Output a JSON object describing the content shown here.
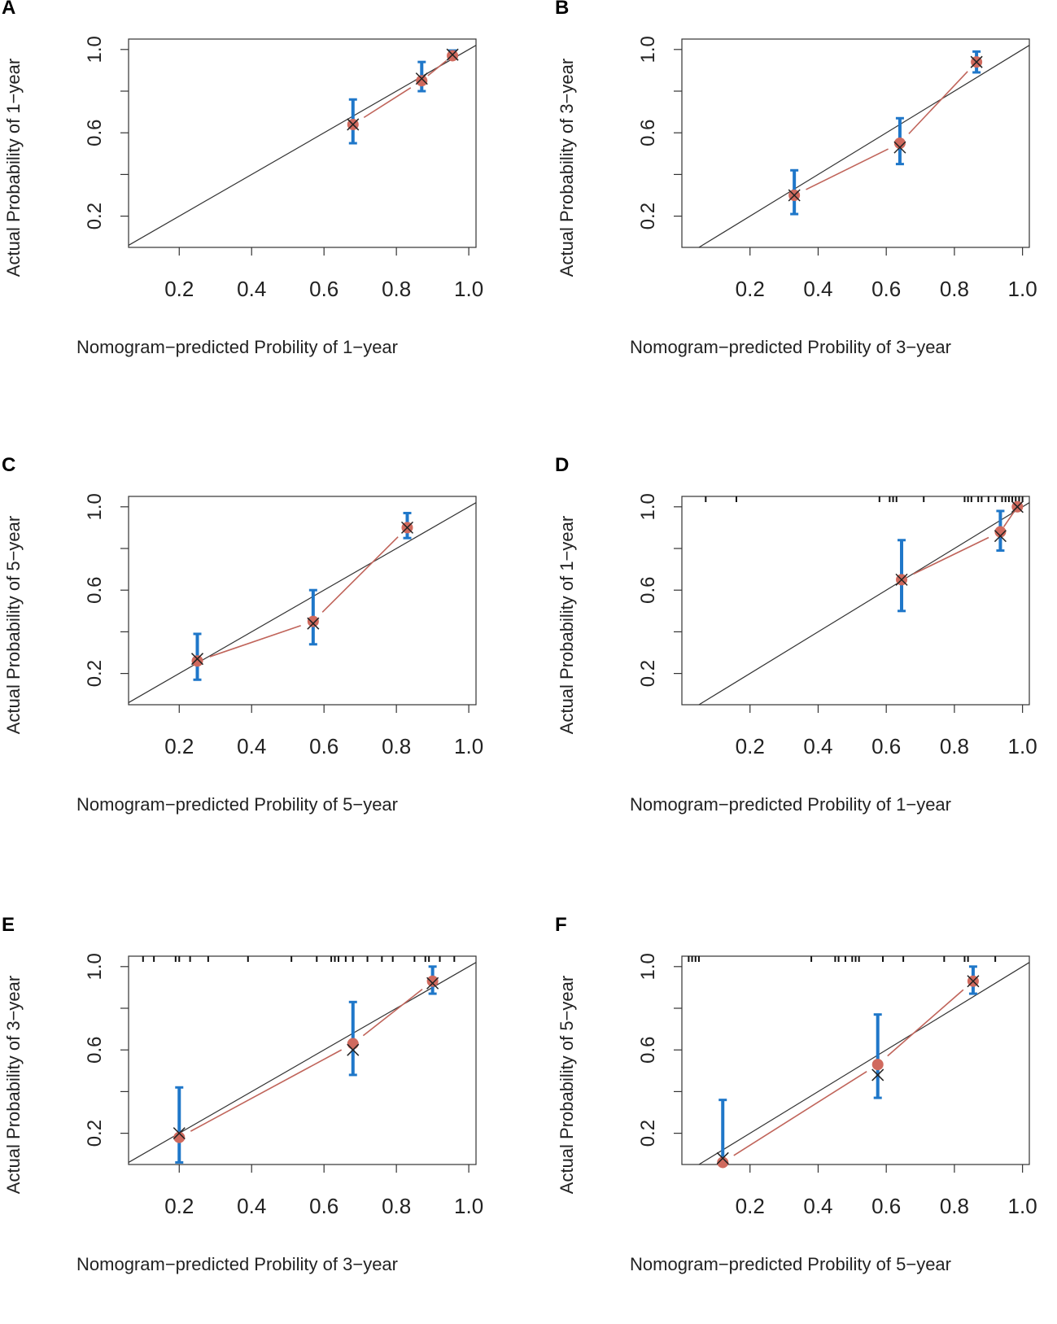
{
  "chart_data": [
    {
      "panel": "A",
      "type": "scatter",
      "xlabel": "Nomogram−predicted Probility of 1−year",
      "ylabel": "Actual Probability of 1−year",
      "xlim": [
        0.06,
        1.02
      ],
      "ylim": [
        0.05,
        1.05
      ],
      "xticks": [
        "0.2",
        "0.4",
        "0.6",
        "0.8",
        "1.0"
      ],
      "yticks": [
        "0.2",
        "0.6",
        "1.0"
      ],
      "points": [
        {
          "x": 0.68,
          "y": 0.64,
          "cross": 0.64,
          "lo": 0.55,
          "hi": 0.76
        },
        {
          "x": 0.87,
          "y": 0.85,
          "cross": 0.86,
          "lo": 0.8,
          "hi": 0.94
        },
        {
          "x": 0.955,
          "y": 0.97,
          "cross": 0.975,
          "lo": 0.955,
          "hi": 0.995
        }
      ],
      "rug": [],
      "colors": {
        "errorbar": "#1f77c9",
        "line": "#c0645a",
        "point": "#d06a5e",
        "cross": "#222222",
        "diagonal": "#333333"
      }
    },
    {
      "panel": "B",
      "type": "scatter",
      "xlabel": "Nomogram−predicted Probility of 3−year",
      "ylabel": "Actual Probability of 3−year",
      "xlim": [
        0.0,
        1.02
      ],
      "ylim": [
        0.05,
        1.05
      ],
      "xticks": [
        "0.2",
        "0.4",
        "0.6",
        "0.8",
        "1.0"
      ],
      "yticks": [
        "0.2",
        "0.6",
        "1.0"
      ],
      "points": [
        {
          "x": 0.33,
          "y": 0.3,
          "cross": 0.3,
          "lo": 0.21,
          "hi": 0.42
        },
        {
          "x": 0.64,
          "y": 0.55,
          "cross": 0.53,
          "lo": 0.45,
          "hi": 0.67
        },
        {
          "x": 0.865,
          "y": 0.94,
          "cross": 0.94,
          "lo": 0.89,
          "hi": 0.99
        }
      ],
      "rug": [],
      "colors": {
        "errorbar": "#1f77c9",
        "line": "#c0645a",
        "point": "#d06a5e",
        "cross": "#222222",
        "diagonal": "#333333"
      }
    },
    {
      "panel": "C",
      "type": "scatter",
      "xlabel": "Nomogram−predicted Probility of 5−year",
      "ylabel": "Actual Probability of 5−year",
      "xlim": [
        0.06,
        1.02
      ],
      "ylim": [
        0.05,
        1.05
      ],
      "xticks": [
        "0.2",
        "0.4",
        "0.6",
        "0.8",
        "1.0"
      ],
      "yticks": [
        "0.2",
        "0.6",
        "1.0"
      ],
      "points": [
        {
          "x": 0.25,
          "y": 0.26,
          "cross": 0.27,
          "lo": 0.17,
          "hi": 0.39
        },
        {
          "x": 0.57,
          "y": 0.45,
          "cross": 0.44,
          "lo": 0.34,
          "hi": 0.6
        },
        {
          "x": 0.83,
          "y": 0.9,
          "cross": 0.9,
          "lo": 0.85,
          "hi": 0.97
        }
      ],
      "rug": [],
      "colors": {
        "errorbar": "#1f77c9",
        "line": "#c0645a",
        "point": "#d06a5e",
        "cross": "#222222",
        "diagonal": "#333333"
      }
    },
    {
      "panel": "D",
      "type": "scatter",
      "xlabel": "Nomogram−predicted Probility of 1−year",
      "ylabel": "Actual Probability of 1−year",
      "xlim": [
        0.0,
        1.02
      ],
      "ylim": [
        0.05,
        1.05
      ],
      "xticks": [
        "0.2",
        "0.4",
        "0.6",
        "0.8",
        "1.0"
      ],
      "yticks": [
        "0.2",
        "0.6",
        "1.0"
      ],
      "points": [
        {
          "x": 0.645,
          "y": 0.65,
          "cross": 0.65,
          "lo": 0.5,
          "hi": 0.84
        },
        {
          "x": 0.935,
          "y": 0.88,
          "cross": 0.86,
          "lo": 0.79,
          "hi": 0.98
        },
        {
          "x": 0.985,
          "y": 1.0,
          "cross": 1.0,
          "lo": 0.99,
          "hi": 1.01
        }
      ],
      "rug": [
        0.07,
        0.16,
        0.58,
        0.61,
        0.62,
        0.63,
        0.71,
        0.83,
        0.84,
        0.85,
        0.87,
        0.88,
        0.9,
        0.92,
        0.94,
        0.95,
        0.96,
        0.97,
        0.98,
        0.99,
        1.0
      ],
      "colors": {
        "errorbar": "#1f77c9",
        "line": "#c0645a",
        "point": "#d06a5e",
        "cross": "#222222",
        "diagonal": "#333333"
      }
    },
    {
      "panel": "E",
      "type": "scatter",
      "xlabel": "Nomogram−predicted Probility of 3−year",
      "ylabel": "Actual Probability of 3−year",
      "xlim": [
        0.06,
        1.02
      ],
      "ylim": [
        0.05,
        1.05
      ],
      "xticks": [
        "0.2",
        "0.4",
        "0.6",
        "0.8",
        "1.0"
      ],
      "yticks": [
        "0.2",
        "0.6",
        "1.0"
      ],
      "points": [
        {
          "x": 0.2,
          "y": 0.18,
          "cross": 0.2,
          "lo": 0.06,
          "hi": 0.42
        },
        {
          "x": 0.68,
          "y": 0.63,
          "cross": 0.6,
          "lo": 0.48,
          "hi": 0.83
        },
        {
          "x": 0.9,
          "y": 0.93,
          "cross": 0.92,
          "lo": 0.87,
          "hi": 1.0
        }
      ],
      "rug": [
        0.1,
        0.13,
        0.19,
        0.2,
        0.23,
        0.28,
        0.39,
        0.51,
        0.58,
        0.62,
        0.63,
        0.64,
        0.66,
        0.68,
        0.72,
        0.76,
        0.79,
        0.85,
        0.88,
        0.89,
        0.92,
        0.96
      ],
      "colors": {
        "errorbar": "#1f77c9",
        "line": "#c0645a",
        "point": "#d06a5e",
        "cross": "#222222",
        "diagonal": "#333333"
      }
    },
    {
      "panel": "F",
      "type": "scatter",
      "xlabel": "Nomogram−predicted Probility of 5−year",
      "ylabel": "Actual Probability of 5−year",
      "xlim": [
        0.0,
        1.02
      ],
      "ylim": [
        0.05,
        1.05
      ],
      "xticks": [
        "0.2",
        "0.4",
        "0.6",
        "0.8",
        "1.0"
      ],
      "yticks": [
        "0.2",
        "0.6",
        "1.0"
      ],
      "points": [
        {
          "x": 0.12,
          "y": 0.06,
          "cross": 0.08,
          "lo": 0.06,
          "hi": 0.36
        },
        {
          "x": 0.575,
          "y": 0.53,
          "cross": 0.48,
          "lo": 0.37,
          "hi": 0.77
        },
        {
          "x": 0.855,
          "y": 0.93,
          "cross": 0.93,
          "lo": 0.87,
          "hi": 1.0
        }
      ],
      "rug": [
        0.02,
        0.03,
        0.04,
        0.05,
        0.38,
        0.45,
        0.46,
        0.48,
        0.5,
        0.51,
        0.52,
        0.59,
        0.65,
        0.77,
        0.83,
        0.84,
        0.92
      ],
      "colors": {
        "errorbar": "#1f77c9",
        "line": "#c0645a",
        "point": "#d06a5e",
        "cross": "#222222",
        "diagonal": "#333333"
      }
    }
  ]
}
